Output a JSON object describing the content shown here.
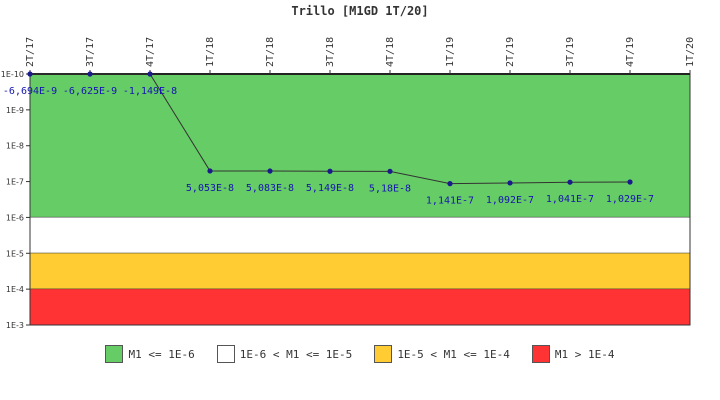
{
  "colors": {
    "green": "#66cc66",
    "white": "#ffffff",
    "yellow": "#ffcc33",
    "red": "#ff3333",
    "line": "#333333",
    "point": "#1a1a8c",
    "label": "#1515b0"
  },
  "chart_data": {
    "type": "line",
    "title": "Trillo [M1GD 1T/20]",
    "y_scale": "log",
    "y_inverted": true,
    "y_ticks": [
      "1E-10",
      "1E-9",
      "1E-8",
      "1E-7",
      "1E-6",
      "1E-5",
      "1E-4",
      "1E-3"
    ],
    "ylim": [
      1e-10,
      0.001
    ],
    "categories": [
      "2T/17",
      "3T/17",
      "4T/17",
      "1T/18",
      "2T/18",
      "3T/18",
      "4T/18",
      "1T/19",
      "2T/19",
      "3T/19",
      "4T/19",
      "1T/20"
    ],
    "series": [
      {
        "values": [
          -6.694e-09,
          -6.625e-09,
          -1.149e-08,
          5.053e-08,
          5.083e-08,
          5.149e-08,
          5.18e-08,
          1.141e-07,
          1.092e-07,
          1.041e-07,
          1.029e-07,
          null
        ],
        "labels": [
          "-6,694E-9",
          "-6,625E-9",
          "-1,149E-8",
          "5,053E-8",
          "5,083E-8",
          "5,149E-8",
          "5,18E-8",
          "1,141E-7",
          "1,092E-7",
          "1,041E-7",
          "1,029E-7",
          ""
        ]
      }
    ],
    "bands": [
      {
        "from": 1e-10,
        "to": 1e-06,
        "color": "#66cc66",
        "legend": "M1 <= 1E-6"
      },
      {
        "from": 1e-06,
        "to": 1e-05,
        "color": "#ffffff",
        "legend": "1E-6 < M1 <= 1E-5"
      },
      {
        "from": 1e-05,
        "to": 0.0001,
        "color": "#ffcc33",
        "legend": "1E-5 < M1 <= 1E-4"
      },
      {
        "from": 0.0001,
        "to": 0.001,
        "color": "#ff3333",
        "legend": "M1 > 1E-4"
      }
    ],
    "legend_position": "bottom"
  }
}
